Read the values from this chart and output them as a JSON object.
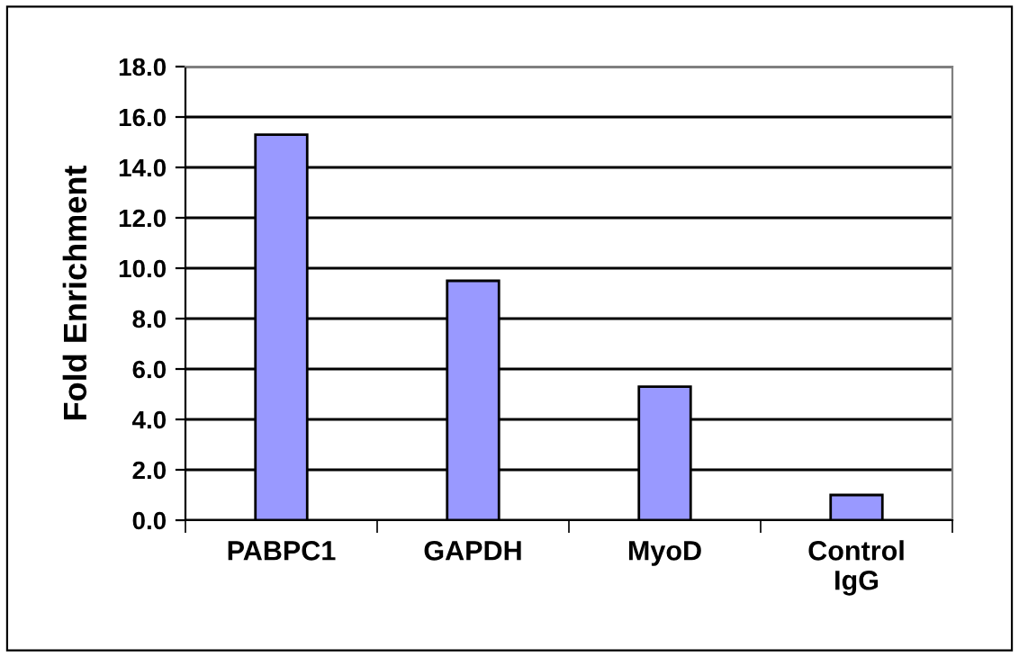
{
  "chart_data": {
    "type": "bar",
    "ylabel": "Fold Enrichment",
    "categories": [
      "PABPC1",
      "GAPDH",
      "MyoD",
      "Control\nIgG"
    ],
    "values": [
      15.3,
      9.5,
      5.3,
      1.0
    ],
    "color": "#9999ff",
    "ylim": [
      0,
      18
    ],
    "yticks": [
      {
        "value": 0,
        "label": "0.0"
      },
      {
        "value": 2,
        "label": "2.0"
      },
      {
        "value": 4,
        "label": "4.0"
      },
      {
        "value": 6,
        "label": "6.0"
      },
      {
        "value": 8,
        "label": "8.0"
      },
      {
        "value": 10,
        "label": "10.0"
      },
      {
        "value": 12,
        "label": "12.0"
      },
      {
        "value": 14,
        "label": "14.0"
      },
      {
        "value": 16,
        "label": "16.0"
      },
      {
        "value": 18,
        "label": "18.0"
      }
    ],
    "grid": "y",
    "legend": false
  }
}
